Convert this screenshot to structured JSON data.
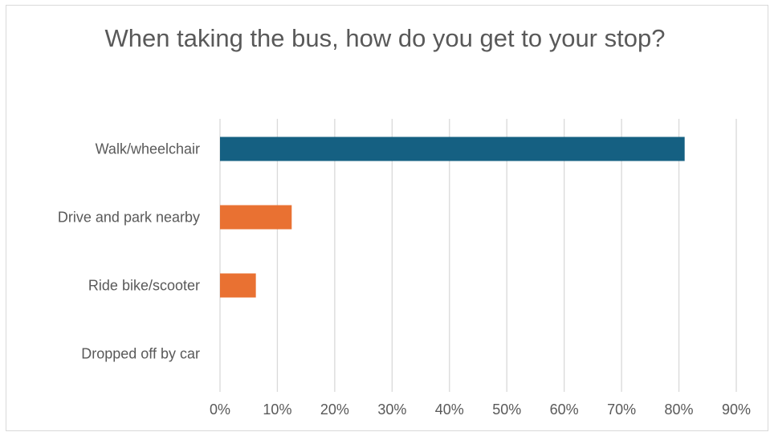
{
  "chart_data": {
    "type": "bar",
    "orientation": "horizontal",
    "title": "When taking the bus, how do you get to your stop?",
    "xlabel": "",
    "ylabel": "",
    "categories": [
      "Walk/wheelchair",
      "Drive and park nearby",
      "Ride bike/scooter",
      "Dropped off by car"
    ],
    "values": [
      81,
      12.5,
      6.25,
      0
    ],
    "bar_colors": [
      "#156082",
      "#E97132",
      "#E97132",
      "#E97132"
    ],
    "xlim": [
      0,
      90
    ],
    "x_ticks": [
      0,
      10,
      20,
      30,
      40,
      50,
      60,
      70,
      80,
      90
    ],
    "x_tick_labels": [
      "0%",
      "10%",
      "20%",
      "30%",
      "40%",
      "50%",
      "60%",
      "70%",
      "80%",
      "90%"
    ],
    "grid": "vertical",
    "legend": "none"
  },
  "colors": {
    "text": "#595959",
    "gridline": "#d9d9d9",
    "frame": "#d9d9d9"
  }
}
